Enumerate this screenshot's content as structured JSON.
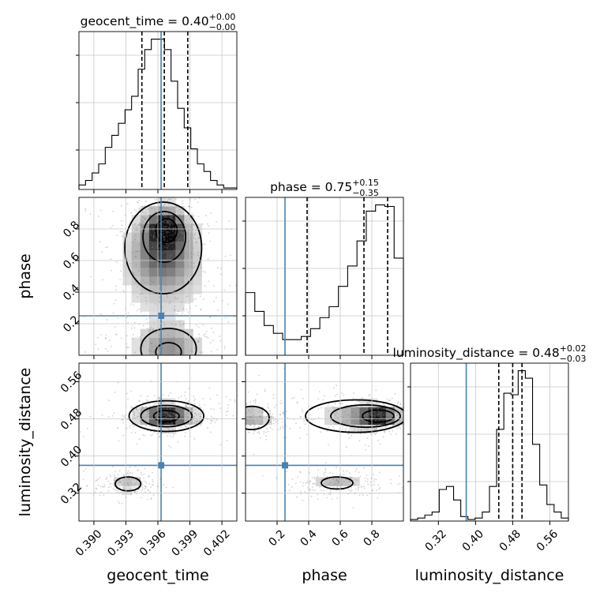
{
  "chart_data": {
    "type": "corner",
    "truth_color": "#4682b4",
    "parameters": [
      {
        "name": "geocent_time",
        "range": [
          0.3886,
          0.4034
        ],
        "ticks": [
          0.39,
          0.393,
          0.396,
          0.399,
          0.402
        ],
        "tick_labels": [
          "0.390",
          "0.393",
          "0.396",
          "0.399",
          "0.402"
        ],
        "truth": 0.3963,
        "median": 0.3966,
        "q_low": 0.3945,
        "q_high": 0.3988,
        "title_main": "geocent_time = 0.40",
        "title_sup": "+0.00",
        "title_sub": "−0.00",
        "xlabel": "geocent_time",
        "ylabel": ""
      },
      {
        "name": "phase",
        "range": [
          0.0,
          1.0
        ],
        "ticks": [
          0.2,
          0.4,
          0.6,
          0.8
        ],
        "tick_labels": [
          "0.2",
          "0.4",
          "0.6",
          "0.8"
        ],
        "truth": 0.25,
        "median": 0.75,
        "q_low": 0.39,
        "q_high": 0.9,
        "title_main": "phase = 0.75",
        "title_sup": "+0.15",
        "title_sub": "−0.35",
        "xlabel": "phase",
        "ylabel": "phase"
      },
      {
        "name": "luminosity_distance",
        "range": [
          0.26,
          0.6
        ],
        "ticks": [
          0.32,
          0.4,
          0.48,
          0.56
        ],
        "tick_labels": [
          "0.32",
          "0.40",
          "0.48",
          "0.56"
        ],
        "truth": 0.38,
        "median": 0.48,
        "q_low": 0.45,
        "q_high": 0.5,
        "title_main": "luminosity_distance = 0.48",
        "title_sup": "+0.02",
        "title_sub": "−0.03",
        "xlabel": "luminosity_distance",
        "ylabel": "luminosity_distance"
      }
    ],
    "histograms": {
      "geocent_time": [
        0.3,
        0.6,
        1.1,
        1.7,
        2.8,
        3.6,
        4.4,
        5.3,
        6.2,
        8.0,
        9.3,
        10.0,
        10.0,
        9.3,
        7.2,
        5.4,
        4.1,
        2.7,
        1.7,
        1.2,
        0.6,
        0.3,
        0.1,
        0.1
      ],
      "phase": [
        4.0,
        2.8,
        1.9,
        1.4,
        1.0,
        1.0,
        1.2,
        1.7,
        2.4,
        3.1,
        4.4,
        5.7,
        7.3,
        9.2,
        9.6,
        9.5,
        6.2
      ],
      "luminosity_distance": [
        0.1,
        0.2,
        0.4,
        0.6,
        2.1,
        2.3,
        1.4,
        0.3,
        0.1,
        0.2,
        0.6,
        2.3,
        6.1,
        8.5,
        8.4,
        10.0,
        9.5,
        5.1,
        2.4,
        1.1,
        0.6,
        0.2
      ]
    },
    "blobs": {
      "phase_vs_geocent_time": [
        {
          "x": 0.3968,
          "y": 0.8,
          "sx": 0.0009,
          "sy": 0.06,
          "w": 1.0
        },
        {
          "x": 0.3965,
          "y": 0.7,
          "sx": 0.0016,
          "sy": 0.14,
          "w": 0.55
        },
        {
          "x": 0.3965,
          "y": 0.55,
          "sx": 0.0027,
          "sy": 0.2,
          "w": 0.3
        },
        {
          "x": 0.397,
          "y": 0.05,
          "sx": 0.0019,
          "sy": 0.09,
          "w": 0.45
        }
      ],
      "luminosity_distance_vs_geocent_time": [
        {
          "x": 0.3968,
          "y": 0.486,
          "sx": 0.001,
          "sy": 0.009,
          "w": 1.0
        },
        {
          "x": 0.3968,
          "y": 0.486,
          "sx": 0.0019,
          "sy": 0.018,
          "w": 0.45
        },
        {
          "x": 0.3932,
          "y": 0.34,
          "sx": 0.001,
          "sy": 0.011,
          "w": 0.28
        }
      ],
      "luminosity_distance_vs_phase": [
        {
          "x": 0.84,
          "y": 0.486,
          "sx": 0.07,
          "sy": 0.011,
          "w": 1.0
        },
        {
          "x": 0.72,
          "y": 0.486,
          "sx": 0.15,
          "sy": 0.018,
          "w": 0.4
        },
        {
          "x": 0.04,
          "y": 0.482,
          "sx": 0.08,
          "sy": 0.016,
          "w": 0.35
        },
        {
          "x": 0.58,
          "y": 0.342,
          "sx": 0.1,
          "sy": 0.011,
          "w": 0.3
        }
      ]
    },
    "contours": {
      "phase_vs_geocent_time": [
        {
          "x": 0.3968,
          "y": 0.79,
          "rx": 0.001,
          "ry": 0.075
        },
        {
          "x": 0.3966,
          "y": 0.75,
          "rx": 0.002,
          "ry": 0.16
        },
        {
          "x": 0.3965,
          "y": 0.68,
          "rx": 0.0036,
          "ry": 0.29
        },
        {
          "x": 0.397,
          "y": 0.04,
          "rx": 0.0026,
          "ry": 0.13
        },
        {
          "x": 0.397,
          "y": 0.02,
          "rx": 0.0012,
          "ry": 0.06
        }
      ],
      "luminosity_distance_vs_geocent_time": [
        {
          "x": 0.3968,
          "y": 0.486,
          "rx": 0.0012,
          "ry": 0.012
        },
        {
          "x": 0.3968,
          "y": 0.486,
          "rx": 0.0024,
          "ry": 0.023
        },
        {
          "x": 0.3968,
          "y": 0.486,
          "rx": 0.0035,
          "ry": 0.033
        },
        {
          "x": 0.3932,
          "y": 0.34,
          "rx": 0.0012,
          "ry": 0.015
        }
      ],
      "luminosity_distance_vs_phase": [
        {
          "x": 0.84,
          "y": 0.486,
          "rx": 0.1,
          "ry": 0.013
        },
        {
          "x": 0.76,
          "y": 0.486,
          "rx": 0.22,
          "ry": 0.024
        },
        {
          "x": 0.7,
          "y": 0.486,
          "rx": 0.32,
          "ry": 0.035
        },
        {
          "x": 0.04,
          "y": 0.482,
          "rx": 0.11,
          "ry": 0.025
        },
        {
          "x": 0.58,
          "y": 0.342,
          "rx": 0.1,
          "ry": 0.013
        }
      ]
    },
    "grid": true
  }
}
